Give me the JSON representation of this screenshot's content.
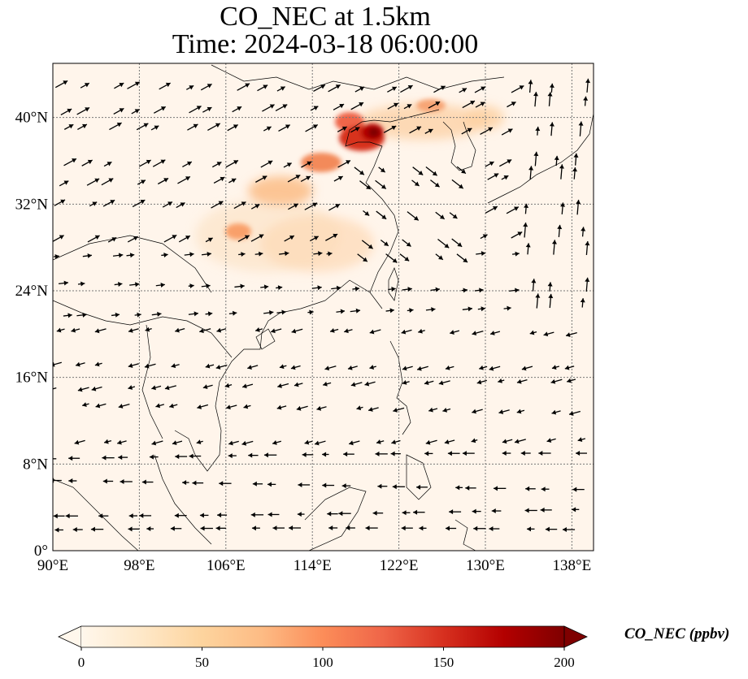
{
  "figure": {
    "title_line1": "CO_NEC at 1.5km",
    "title_line2": "Time: 2024-03-18 06:00:00"
  },
  "map": {
    "lon_range": [
      90,
      140
    ],
    "lat_range": [
      0,
      45
    ],
    "gridlines": true,
    "lon_ticks": [
      "90°E",
      "98°E",
      "106°E",
      "114°E",
      "122°E",
      "130°E",
      "138°E"
    ],
    "lat_ticks": [
      "0°",
      "8°N",
      "16°N",
      "24°N",
      "32°N",
      "40°N"
    ],
    "background_color": "#fff5eb",
    "plume_color_high": "#7f0000",
    "wind_vectors": "black arrows"
  },
  "colorbar": {
    "label": "CO_NEC (ppbv)",
    "ticks": [
      "0",
      "50",
      "100",
      "150",
      "200"
    ],
    "range": [
      0,
      200
    ],
    "colormap": [
      "#fff7ec",
      "#fee8c8",
      "#fdd49e",
      "#fdbb84",
      "#fc8d59",
      "#ef6548",
      "#d7301f",
      "#b30000",
      "#7f0000"
    ],
    "extend": "both"
  }
}
